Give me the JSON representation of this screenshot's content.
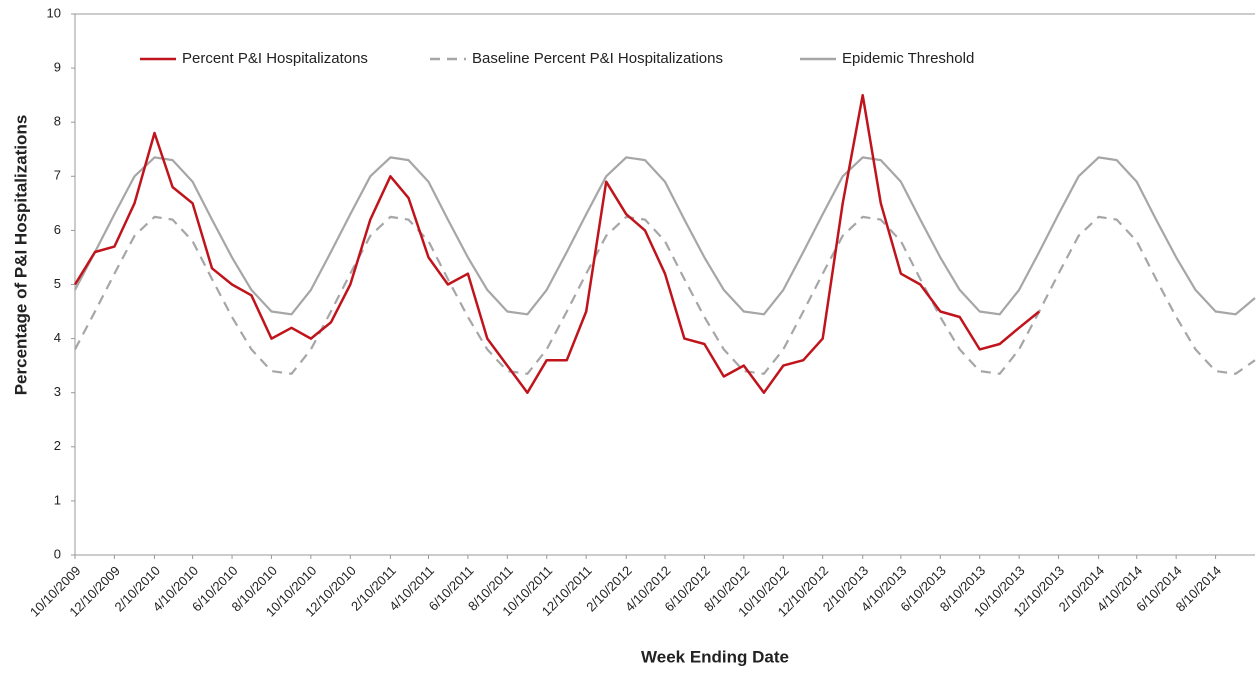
{
  "chart_data": {
    "type": "line",
    "x_label": "Week Ending Date",
    "y_label": "Percentage of P&I Hospitalizations",
    "x": [
      "10/10/2009",
      "11/10/2009",
      "12/10/2009",
      "1/10/2010",
      "2/10/2010",
      "3/10/2010",
      "4/10/2010",
      "5/10/2010",
      "6/10/2010",
      "7/10/2010",
      "8/10/2010",
      "9/10/2010",
      "10/10/2010",
      "11/10/2010",
      "12/10/2010",
      "1/10/2011",
      "2/10/2011",
      "3/10/2011",
      "4/10/2011",
      "5/10/2011",
      "6/10/2011",
      "7/10/2011",
      "8/10/2011",
      "9/10/2011",
      "10/10/2011",
      "11/10/2011",
      "12/10/2011",
      "1/10/2012",
      "2/10/2012",
      "3/10/2012",
      "4/10/2012",
      "5/10/2012",
      "6/10/2012",
      "7/10/2012",
      "8/10/2012",
      "9/10/2012",
      "10/10/2012",
      "11/10/2012",
      "12/10/2012",
      "1/10/2013",
      "2/10/2013",
      "3/10/2013",
      "4/10/2013",
      "5/10/2013",
      "6/10/2013",
      "7/10/2013",
      "8/10/2013",
      "9/10/2013",
      "10/10/2013",
      "11/10/2013",
      "12/10/2013",
      "1/10/2014",
      "2/10/2014",
      "3/10/2014",
      "4/10/2014",
      "5/10/2014",
      "6/10/2014",
      "7/10/2014",
      "8/10/2014",
      "9/10/2014",
      "10/10/2014"
    ],
    "series": [
      {
        "name": "Percent P&I Hospitalizatons",
        "color": "#c0141c",
        "style": "solid",
        "values": [
          5.0,
          5.6,
          5.7,
          6.5,
          7.8,
          6.8,
          6.5,
          5.3,
          5.0,
          4.8,
          4.0,
          4.2,
          4.0,
          4.3,
          5.0,
          6.2,
          7.0,
          6.6,
          5.5,
          5.0,
          5.2,
          4.0,
          3.5,
          3.0,
          3.6,
          3.6,
          4.5,
          6.9,
          6.3,
          6.0,
          5.2,
          4.0,
          3.9,
          3.3,
          3.5,
          3.0,
          3.5,
          3.6,
          4.0,
          6.5,
          8.5,
          6.5,
          5.2,
          5.0,
          4.5,
          4.4,
          3.8,
          3.9,
          4.2,
          4.5,
          null,
          null,
          null,
          null,
          null,
          null,
          null,
          null,
          null,
          null,
          null
        ]
      },
      {
        "name": "Baseline Percent P&I Hospitalizations",
        "color": "#a6a6a6",
        "style": "dashed",
        "values": [
          3.8,
          4.5,
          5.2,
          5.9,
          6.25,
          6.2,
          5.8,
          5.1,
          4.4,
          3.8,
          3.4,
          3.35,
          3.8,
          4.5,
          5.2,
          5.9,
          6.25,
          6.2,
          5.8,
          5.1,
          4.4,
          3.8,
          3.4,
          3.35,
          3.8,
          4.5,
          5.2,
          5.9,
          6.25,
          6.2,
          5.8,
          5.1,
          4.4,
          3.8,
          3.4,
          3.35,
          3.8,
          4.5,
          5.2,
          5.9,
          6.25,
          6.2,
          5.8,
          5.1,
          4.4,
          3.8,
          3.4,
          3.35,
          3.8,
          4.5,
          5.2,
          5.9,
          6.25,
          6.2,
          5.8,
          5.1,
          4.4,
          3.8,
          3.4,
          3.35,
          3.6
        ]
      },
      {
        "name": "Epidemic Threshold",
        "color": "#a6a6a6",
        "style": "solid",
        "values": [
          4.9,
          5.6,
          6.3,
          7.0,
          7.35,
          7.3,
          6.9,
          6.2,
          5.5,
          4.9,
          4.5,
          4.45,
          4.9,
          5.6,
          6.3,
          7.0,
          7.35,
          7.3,
          6.9,
          6.2,
          5.5,
          4.9,
          4.5,
          4.45,
          4.9,
          5.6,
          6.3,
          7.0,
          7.35,
          7.3,
          6.9,
          6.2,
          5.5,
          4.9,
          4.5,
          4.45,
          4.9,
          5.6,
          6.3,
          7.0,
          7.35,
          7.3,
          6.9,
          6.2,
          5.5,
          4.9,
          4.5,
          4.45,
          4.9,
          5.6,
          6.3,
          7.0,
          7.35,
          7.3,
          6.9,
          6.2,
          5.5,
          4.9,
          4.5,
          4.45,
          4.75
        ]
      }
    ],
    "xlim": [
      "10/10/2009",
      "10/10/2014"
    ],
    "xticks": [
      "10/10/2009",
      "12/10/2009",
      "2/10/2010",
      "4/10/2010",
      "6/10/2010",
      "8/10/2010",
      "10/10/2010",
      "12/10/2010",
      "2/10/2011",
      "4/10/2011",
      "6/10/2011",
      "8/10/2011",
      "10/10/2011",
      "12/10/2011",
      "2/10/2012",
      "4/10/2012",
      "6/10/2012",
      "8/10/2012",
      "10/10/2012",
      "12/10/2012",
      "2/10/2013",
      "4/10/2013",
      "6/10/2013",
      "8/10/2013",
      "10/10/2013",
      "12/10/2013",
      "2/10/2014",
      "4/10/2014",
      "6/10/2014",
      "8/10/2014"
    ],
    "ylim": [
      0,
      10
    ],
    "yticks": [
      0,
      1,
      2,
      3,
      4,
      5,
      6,
      7,
      8,
      9,
      10
    ],
    "grid": false,
    "legend": "top"
  }
}
